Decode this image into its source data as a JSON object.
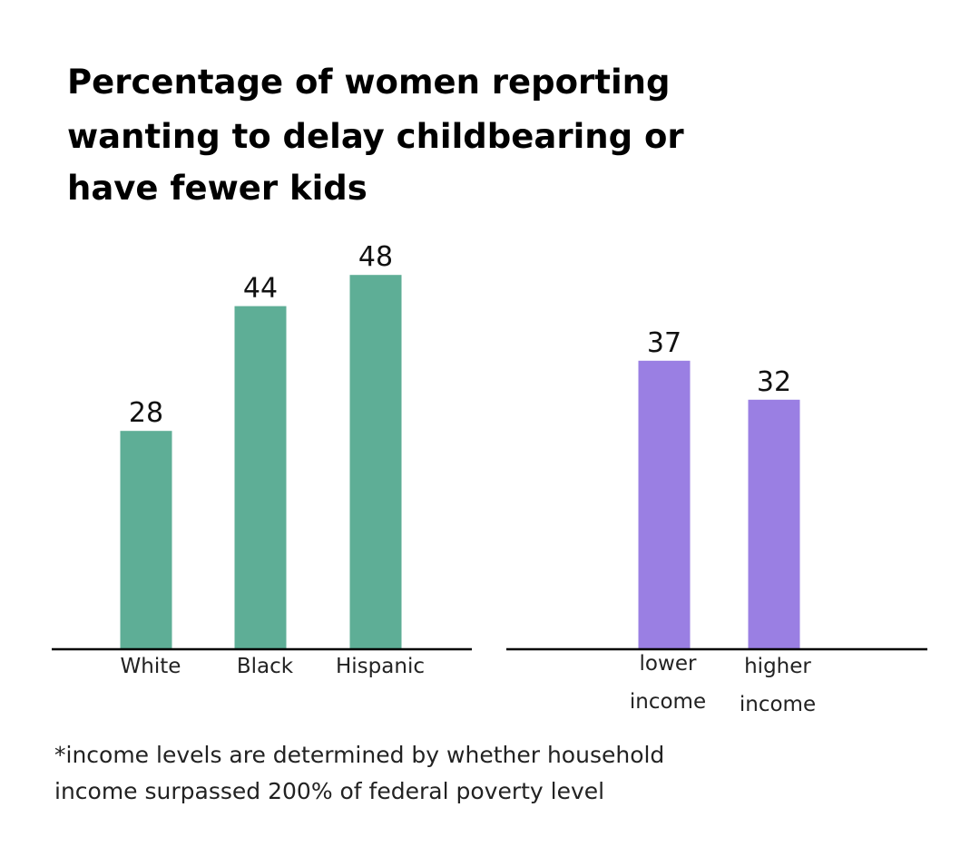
{
  "title_lines": [
    "Percentage of women reporting",
    "wanting to delay childbearing or",
    "have fewer kids"
  ],
  "footnote_lines": [
    "*income levels are determined by whether household",
    "income surpassed 200% of federal poverty level"
  ],
  "colors": {
    "race": "#5eae96",
    "income": "#9a7fe3",
    "axis": "#000000"
  },
  "chart_data": [
    {
      "type": "bar",
      "title": "Percentage of women reporting wanting to delay childbearing or have fewer kids",
      "categories": [
        [
          "White"
        ],
        [
          "Black"
        ],
        [
          "Hispanic"
        ]
      ],
      "values": [
        28,
        44,
        48
      ],
      "color": "#5eae96",
      "grid": false,
      "ylim": [
        0,
        48
      ]
    },
    {
      "type": "bar",
      "categories": [
        [
          "lower",
          "income"
        ],
        [
          "higher",
          "income"
        ]
      ],
      "values": [
        37,
        32
      ],
      "color": "#9a7fe3",
      "grid": false,
      "ylim": [
        0,
        48
      ]
    }
  ]
}
